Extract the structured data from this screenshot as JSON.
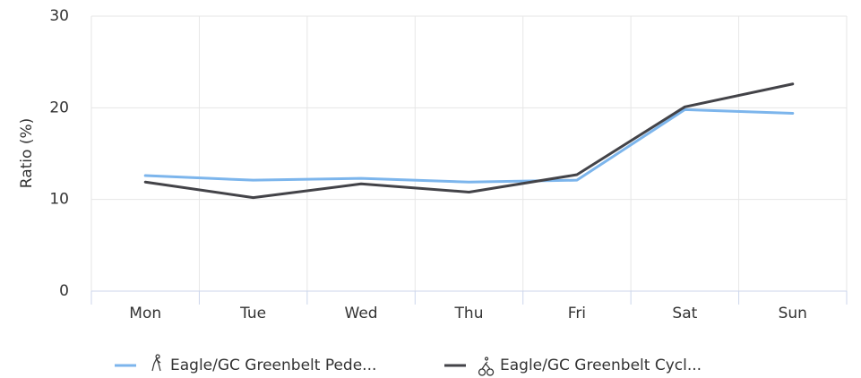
{
  "chart_data": {
    "type": "line",
    "y_label": "Ratio (%)",
    "categories": [
      "Mon",
      "Tue",
      "Wed",
      "Thu",
      "Fri",
      "Sat",
      "Sun"
    ],
    "series": [
      {
        "name": "Eagle/GC Greenbelt Pede...",
        "color": "#7cb5ec",
        "values": [
          12.6,
          12.1,
          12.3,
          11.9,
          12.1,
          19.8,
          19.4
        ]
      },
      {
        "name": "Eagle/GC Greenbelt Cycl...",
        "color": "#434348",
        "values": [
          11.9,
          10.2,
          11.7,
          10.8,
          12.7,
          20.1,
          22.6
        ]
      }
    ],
    "ylim": [
      0,
      30
    ],
    "yticks": [
      0,
      10,
      20,
      30
    ],
    "grid": true,
    "legend": "bottom"
  }
}
